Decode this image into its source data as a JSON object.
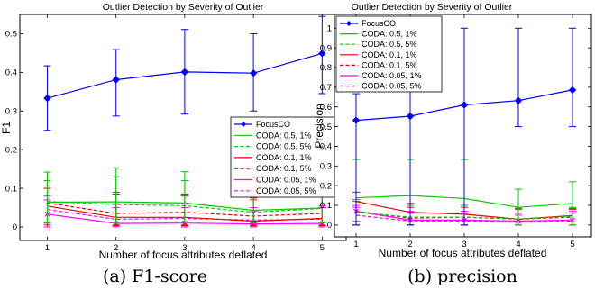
{
  "chart_data": [
    {
      "type": "line",
      "title": "Outlier Detection by Severity of Outlier",
      "xlabel": "Number of focus attributes deflated",
      "ylabel": "F1",
      "caption": "(a) F1-score",
      "x": [
        1,
        2,
        3,
        4,
        5
      ],
      "xlim": [
        0.6,
        5.35
      ],
      "ylim": [
        -0.035,
        0.55
      ],
      "yticks": [
        0,
        0.1,
        0.2,
        0.3,
        0.4,
        0.5
      ],
      "yticklabels": [
        "0",
        "0.1",
        "0.2",
        "0.3",
        "0.4",
        "0.5"
      ],
      "legend_position": "center-right",
      "grid": false,
      "series": [
        {
          "name": "FocusCO",
          "color": "#0000ff",
          "dash": "solid",
          "marker": "diamond",
          "values": [
            0.333,
            0.381,
            0.401,
            0.398,
            0.449
          ],
          "err_low": [
            0.25,
            0.287,
            0.292,
            0.3,
            0.345
          ],
          "err_high": [
            0.417,
            0.459,
            0.511,
            0.5,
            0.545
          ]
        },
        {
          "name": "CODA: 0.5, 1%",
          "color": "#00cc00",
          "dash": "solid",
          "marker": "none",
          "values": [
            0.064,
            0.065,
            0.062,
            0.043,
            0.049
          ],
          "err_low": [
            0.012,
            0.01,
            0.01,
            0.012,
            0.012
          ],
          "err_high": [
            0.142,
            0.153,
            0.143,
            0.09,
            0.095
          ]
        },
        {
          "name": "CODA: 0.5, 5%",
          "color": "#00cc00",
          "dash": "dashed",
          "marker": "none",
          "values": [
            0.066,
            0.058,
            0.055,
            0.038,
            0.048
          ],
          "err_low": [
            0.01,
            0.01,
            0.01,
            0.01,
            0.01
          ],
          "err_high": [
            0.12,
            0.13,
            0.12,
            0.085,
            0.09
          ]
        },
        {
          "name": "CODA: 0.1, 1%",
          "color": "#ee0000",
          "dash": "solid",
          "marker": "none",
          "values": [
            0.054,
            0.025,
            0.025,
            0.015,
            0.022
          ],
          "err_low": [
            0.005,
            0.003,
            0.003,
            0.003,
            0.003
          ],
          "err_high": [
            0.1,
            0.09,
            0.085,
            0.07,
            0.085
          ]
        },
        {
          "name": "CODA: 0.1, 5%",
          "color": "#ee0000",
          "dash": "dashed",
          "marker": "none",
          "values": [
            0.062,
            0.035,
            0.038,
            0.028,
            0.035
          ],
          "err_low": [
            0.01,
            0.005,
            0.005,
            0.005,
            0.005
          ],
          "err_high": [
            0.1,
            0.085,
            0.08,
            0.075,
            0.08
          ]
        },
        {
          "name": "CODA: 0.05, 1%",
          "color": "#ff00ff",
          "dash": "solid",
          "marker": "x",
          "values": [
            0.033,
            0.009,
            0.01,
            0.008,
            0.009
          ],
          "err_low": [
            0.0,
            0.0,
            0.0,
            0.0,
            0.0
          ],
          "err_high": [
            0.07,
            0.05,
            0.05,
            0.04,
            0.05
          ]
        },
        {
          "name": "CODA: 0.05, 5%",
          "color": "#ff00ff",
          "dash": "dashed",
          "marker": "none",
          "values": [
            0.045,
            0.02,
            0.022,
            0.018,
            0.02
          ],
          "err_low": [
            0.0,
            0.0,
            0.0,
            0.0,
            0.0
          ],
          "err_high": [
            0.08,
            0.06,
            0.06,
            0.05,
            0.055
          ]
        }
      ]
    },
    {
      "type": "line",
      "title": "Outlier Detection by Severity of Outlier",
      "xlabel": "Number of focus attributes deflated",
      "ylabel": "Precision",
      "caption": "(b) precision",
      "x": [
        1,
        2,
        3,
        4,
        5
      ],
      "xlim": [
        0.6,
        5.35
      ],
      "ylim": [
        -0.06,
        1.07
      ],
      "yticks": [
        0,
        0.1,
        0.2,
        0.3,
        0.4,
        0.5,
        0.6,
        0.7,
        0.8,
        0.9,
        1
      ],
      "yticklabels": [
        "0",
        "0.1",
        "0.2",
        "0.3",
        "0.4",
        "0.5",
        "0.6",
        "0.7",
        "0.8",
        "0.9",
        "1"
      ],
      "legend_position": "top-left",
      "grid": false,
      "series": [
        {
          "name": "FocusCO",
          "color": "#0000ff",
          "dash": "solid",
          "marker": "diamond",
          "values": [
            0.532,
            0.553,
            0.61,
            0.632,
            0.686
          ],
          "err_low": [
            0.0,
            0.0,
            0.0,
            0.5,
            0.5
          ],
          "err_high": [
            0.667,
            0.75,
            1.0,
            1.0,
            1.0
          ]
        },
        {
          "name": "CODA: 0.5, 1%",
          "color": "#00cc00",
          "dash": "solid",
          "marker": "none",
          "values": [
            0.138,
            0.15,
            0.135,
            0.09,
            0.11
          ],
          "err_low": [
            0.02,
            0.0,
            0.0,
            0.0,
            0.0
          ],
          "err_high": [
            0.333,
            0.333,
            0.333,
            0.182,
            0.22
          ]
        },
        {
          "name": "CODA: 0.5, 5%",
          "color": "#00cc00",
          "dash": "dashed",
          "marker": "none",
          "values": [
            0.065,
            0.04,
            0.04,
            0.03,
            0.045
          ],
          "err_low": [
            0.0,
            0.0,
            0.0,
            0.0,
            0.0
          ],
          "err_high": [
            0.13,
            0.1,
            0.1,
            0.08,
            0.09
          ]
        },
        {
          "name": "CODA: 0.1, 1%",
          "color": "#ee0000",
          "dash": "solid",
          "marker": "none",
          "values": [
            0.12,
            0.065,
            0.055,
            0.03,
            0.048
          ],
          "err_low": [
            0.02,
            0.0,
            0.0,
            0.0,
            0.0
          ],
          "err_high": [
            0.167,
            0.11,
            0.1,
            0.085,
            0.08
          ]
        },
        {
          "name": "CODA: 0.1, 5%",
          "color": "#ee0000",
          "dash": "dashed",
          "marker": "none",
          "values": [
            0.07,
            0.035,
            0.04,
            0.03,
            0.04
          ],
          "err_low": [
            0.0,
            0.0,
            0.0,
            0.0,
            0.0
          ],
          "err_high": [
            0.12,
            0.09,
            0.09,
            0.08,
            0.085
          ]
        },
        {
          "name": "CODA: 0.05, 1%",
          "color": "#ff00ff",
          "dash": "solid",
          "marker": "x",
          "values": [
            0.07,
            0.025,
            0.025,
            0.02,
            0.025
          ],
          "err_low": [
            0.0,
            0.0,
            0.0,
            0.0,
            0.0
          ],
          "err_high": [
            0.1,
            0.07,
            0.07,
            0.06,
            0.07
          ]
        },
        {
          "name": "CODA: 0.05, 5%",
          "color": "#ff00ff",
          "dash": "dashed",
          "marker": "none",
          "values": [
            0.05,
            0.02,
            0.02,
            0.015,
            0.02
          ],
          "err_low": [
            0.0,
            0.0,
            0.0,
            0.0,
            0.0
          ],
          "err_high": [
            0.09,
            0.06,
            0.06,
            0.05,
            0.06
          ]
        }
      ]
    }
  ]
}
